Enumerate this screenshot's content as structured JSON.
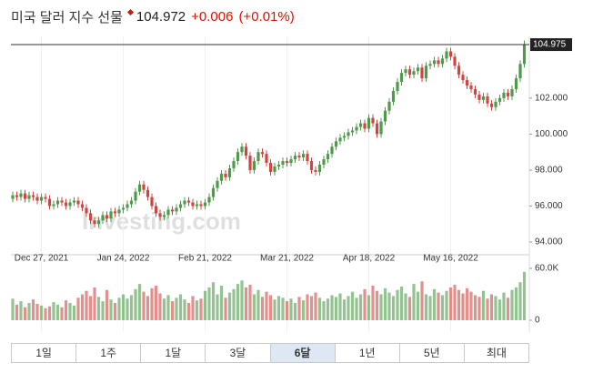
{
  "header": {
    "title": "미국 달러 지수 선물",
    "price": "104.972",
    "change": "+0.006",
    "change_percent": "(+0.01%)"
  },
  "chart_data": {
    "type": "candlestick",
    "categories": [
      null,
      null,
      null,
      null,
      null,
      null,
      null,
      "Dec 27, 2021",
      null,
      null,
      null,
      null,
      null,
      null,
      null,
      null,
      null,
      null,
      null,
      null,
      null,
      null,
      null,
      null,
      null,
      null,
      null,
      "Jan 24, 2022",
      null,
      null,
      null,
      null,
      null,
      null,
      null,
      null,
      null,
      null,
      null,
      null,
      null,
      null,
      null,
      null,
      null,
      null,
      null,
      "Feb 21, 2022",
      null,
      null,
      null,
      null,
      null,
      null,
      null,
      null,
      null,
      null,
      null,
      null,
      null,
      null,
      null,
      null,
      null,
      null,
      null,
      "Mar 21, 2022",
      null,
      null,
      null,
      null,
      null,
      null,
      null,
      null,
      null,
      null,
      null,
      null,
      null,
      null,
      null,
      null,
      null,
      null,
      null,
      "Apr 18, 2022",
      null,
      null,
      null,
      null,
      null,
      null,
      null,
      null,
      null,
      null,
      null,
      null,
      null,
      null,
      null,
      null,
      null,
      null,
      null,
      "May 16, 2022",
      null,
      null,
      null,
      null,
      null,
      null,
      null,
      null,
      null,
      null,
      null,
      null,
      null,
      null,
      null,
      null,
      null,
      null
    ],
    "open": [
      96.4,
      96.6,
      96.5,
      96.7,
      96.4,
      96.6,
      96.5,
      96.3,
      96.5,
      96.4,
      96.0,
      96.1,
      96.3,
      96.2,
      96.0,
      96.2,
      96.3,
      96.1,
      95.9,
      95.6,
      95.2,
      95.0,
      95.2,
      95.5,
      95.3,
      95.7,
      95.6,
      95.8,
      95.9,
      96.1,
      96.3,
      96.8,
      97.2,
      96.9,
      96.5,
      96.0,
      95.6,
      95.4,
      95.5,
      95.8,
      95.7,
      95.9,
      96.1,
      96.3,
      96.2,
      96.0,
      96.1,
      96.0,
      96.2,
      96.5,
      97.0,
      97.4,
      97.8,
      97.6,
      98.1,
      98.5,
      99.0,
      99.3,
      98.8,
      98.0,
      98.5,
      99.0,
      98.9,
      98.4,
      97.9,
      98.2,
      98.3,
      98.5,
      98.4,
      98.6,
      98.8,
      98.7,
      98.9,
      98.5,
      98.0,
      97.9,
      98.3,
      98.6,
      98.9,
      99.3,
      99.6,
      99.8,
      99.9,
      100.1,
      100.2,
      100.4,
      100.6,
      100.3,
      100.9,
      100.6,
      100.0,
      100.7,
      101.3,
      101.8,
      102.4,
      102.9,
      103.4,
      103.6,
      103.3,
      103.5,
      103.7,
      103.1,
      103.8,
      103.9,
      104.1,
      103.9,
      104.2,
      104.6,
      104.3,
      103.8,
      103.3,
      103.0,
      102.7,
      102.5,
      102.2,
      101.9,
      102.1,
      101.7,
      101.5,
      101.8,
      102.0,
      102.3,
      102.1,
      102.5,
      103.1,
      103.9
    ],
    "high": [
      96.8,
      96.8,
      96.9,
      96.9,
      96.8,
      96.8,
      96.7,
      96.7,
      96.7,
      96.6,
      96.3,
      96.5,
      96.5,
      96.4,
      96.4,
      96.5,
      96.5,
      96.3,
      96.1,
      95.8,
      95.4,
      95.4,
      95.7,
      95.7,
      95.9,
      95.9,
      96.0,
      96.1,
      96.3,
      96.5,
      97.0,
      97.4,
      97.4,
      97.1,
      96.7,
      96.2,
      95.8,
      95.7,
      96.0,
      96.0,
      96.1,
      96.3,
      96.5,
      96.5,
      96.4,
      96.3,
      96.3,
      96.4,
      96.7,
      97.2,
      97.6,
      98.0,
      98.0,
      98.3,
      98.7,
      99.2,
      99.5,
      99.5,
      99.0,
      98.7,
      99.2,
      99.2,
      99.1,
      98.6,
      98.4,
      98.5,
      98.7,
      98.7,
      98.8,
      99.0,
      99.0,
      99.1,
      99.1,
      98.7,
      98.2,
      98.5,
      98.8,
      99.1,
      99.5,
      99.8,
      100.0,
      100.1,
      100.3,
      100.4,
      100.6,
      100.8,
      100.8,
      101.1,
      101.1,
      100.8,
      100.9,
      101.5,
      102.0,
      102.6,
      103.1,
      103.6,
      103.8,
      103.8,
      103.7,
      103.9,
      103.9,
      104.0,
      104.1,
      104.3,
      104.3,
      104.4,
      104.8,
      104.8,
      104.5,
      104.0,
      103.5,
      103.2,
      102.9,
      102.7,
      102.4,
      102.3,
      102.3,
      101.9,
      102.0,
      102.2,
      102.5,
      102.5,
      102.7,
      103.3,
      104.1,
      105.2
    ],
    "low": [
      96.2,
      96.3,
      96.3,
      96.2,
      96.2,
      96.3,
      96.1,
      96.1,
      96.2,
      95.8,
      95.8,
      95.9,
      96.0,
      95.8,
      95.8,
      96.0,
      95.9,
      95.7,
      95.4,
      95.0,
      94.8,
      94.8,
      95.0,
      95.1,
      95.1,
      95.4,
      95.4,
      95.6,
      95.7,
      95.9,
      96.1,
      96.6,
      96.7,
      96.3,
      95.8,
      95.4,
      95.2,
      95.2,
      95.3,
      95.5,
      95.5,
      95.7,
      95.9,
      96.0,
      95.8,
      95.8,
      95.8,
      95.8,
      96.0,
      96.3,
      96.8,
      97.2,
      97.4,
      97.4,
      97.9,
      98.3,
      98.8,
      98.6,
      97.8,
      97.8,
      98.3,
      98.7,
      98.2,
      97.7,
      97.7,
      98.0,
      98.1,
      98.2,
      98.2,
      98.4,
      98.5,
      98.5,
      98.3,
      97.8,
      97.7,
      97.7,
      98.1,
      98.4,
      98.7,
      99.1,
      99.4,
      99.6,
      99.7,
      99.9,
      100.0,
      100.2,
      100.1,
      100.1,
      100.4,
      99.8,
      99.8,
      100.5,
      101.1,
      101.6,
      102.2,
      102.7,
      103.2,
      103.1,
      103.1,
      103.3,
      102.9,
      102.9,
      103.6,
      103.7,
      103.7,
      103.7,
      104.0,
      104.1,
      103.6,
      103.1,
      102.8,
      102.5,
      102.3,
      102.0,
      101.7,
      101.7,
      101.5,
      101.3,
      101.3,
      101.6,
      101.8,
      101.9,
      101.9,
      102.3,
      102.9,
      103.7
    ],
    "close": [
      96.6,
      96.5,
      96.7,
      96.4,
      96.6,
      96.5,
      96.3,
      96.5,
      96.4,
      96.0,
      96.1,
      96.3,
      96.2,
      96.0,
      96.2,
      96.3,
      96.1,
      95.9,
      95.6,
      95.2,
      95.0,
      95.2,
      95.5,
      95.3,
      95.7,
      95.6,
      95.8,
      95.9,
      96.1,
      96.3,
      96.8,
      97.2,
      96.9,
      96.5,
      96.0,
      95.6,
      95.4,
      95.5,
      95.8,
      95.7,
      95.9,
      96.1,
      96.3,
      96.2,
      96.0,
      96.1,
      96.0,
      96.2,
      96.5,
      97.0,
      97.4,
      97.8,
      97.6,
      98.1,
      98.5,
      99.0,
      99.3,
      98.8,
      98.0,
      98.5,
      99.0,
      98.9,
      98.4,
      97.9,
      98.2,
      98.3,
      98.5,
      98.4,
      98.6,
      98.8,
      98.7,
      98.9,
      98.5,
      98.0,
      97.9,
      98.3,
      98.6,
      98.9,
      99.3,
      99.6,
      99.8,
      99.9,
      100.1,
      100.2,
      100.4,
      100.6,
      100.3,
      100.9,
      100.6,
      100.0,
      100.7,
      101.3,
      101.8,
      102.4,
      102.9,
      103.4,
      103.6,
      103.3,
      103.5,
      103.7,
      103.1,
      103.8,
      103.9,
      104.1,
      103.9,
      104.2,
      104.6,
      104.3,
      103.8,
      103.3,
      103.0,
      102.7,
      102.5,
      102.2,
      101.9,
      102.1,
      101.7,
      101.5,
      101.8,
      102.0,
      102.3,
      102.1,
      102.5,
      103.1,
      103.9,
      104.975
    ],
    "volume": [
      25000,
      18000,
      22000,
      15000,
      20000,
      24000,
      19000,
      17000,
      14000,
      16000,
      21000,
      18000,
      15000,
      23000,
      20000,
      17000,
      26000,
      30000,
      34000,
      28000,
      38000,
      27000,
      22000,
      35000,
      24000,
      20000,
      26000,
      30000,
      25000,
      29000,
      36000,
      42000,
      33000,
      28000,
      37000,
      40000,
      31000,
      25000,
      29000,
      22000,
      26000,
      30000,
      24000,
      20000,
      28000,
      23000,
      25000,
      34000,
      38000,
      44000,
      30000,
      40000,
      26000,
      32000,
      36000,
      42000,
      46000,
      38000,
      41000,
      30000,
      35000,
      27000,
      33000,
      29000,
      24000,
      28000,
      26000,
      22000,
      25000,
      20000,
      27000,
      23000,
      30000,
      28000,
      32000,
      26000,
      22000,
      25000,
      29000,
      27000,
      31000,
      24000,
      28000,
      33000,
      26000,
      30000,
      36000,
      29000,
      40000,
      34000,
      30000,
      37000,
      32000,
      28000,
      35000,
      39000,
      31000,
      27000,
      42000,
      33000,
      45000,
      30000,
      28000,
      36000,
      32000,
      29000,
      34000,
      38000,
      41000,
      35000,
      31000,
      37000,
      33000,
      29000,
      27000,
      34000,
      25000,
      30000,
      28000,
      24000,
      32000,
      26000,
      35000,
      38000,
      44000,
      56000
    ],
    "up_color": "#4f9a4a",
    "down_color": "#d0453f",
    "ylim": [
      93.5,
      105.2
    ],
    "yticks": [
      {
        "value": 94,
        "label": "94.000"
      },
      {
        "value": 96,
        "label": "96.000"
      },
      {
        "value": 98,
        "label": "98.000"
      },
      {
        "value": 100,
        "label": "100.000"
      },
      {
        "value": 102,
        "label": "102.000"
      }
    ],
    "last_price": {
      "value": 104.975,
      "label": "104.975"
    },
    "volume_ylim": [
      0,
      60000
    ],
    "volume_yticks": [
      0,
      {
        "value": 60000,
        "label": "60.0K"
      }
    ],
    "watermark": "Investing.com"
  },
  "tabs": {
    "items": [
      "1일",
      "1주",
      "1달",
      "3달",
      "6달",
      "1년",
      "5년",
      "최대"
    ],
    "active": 4
  }
}
